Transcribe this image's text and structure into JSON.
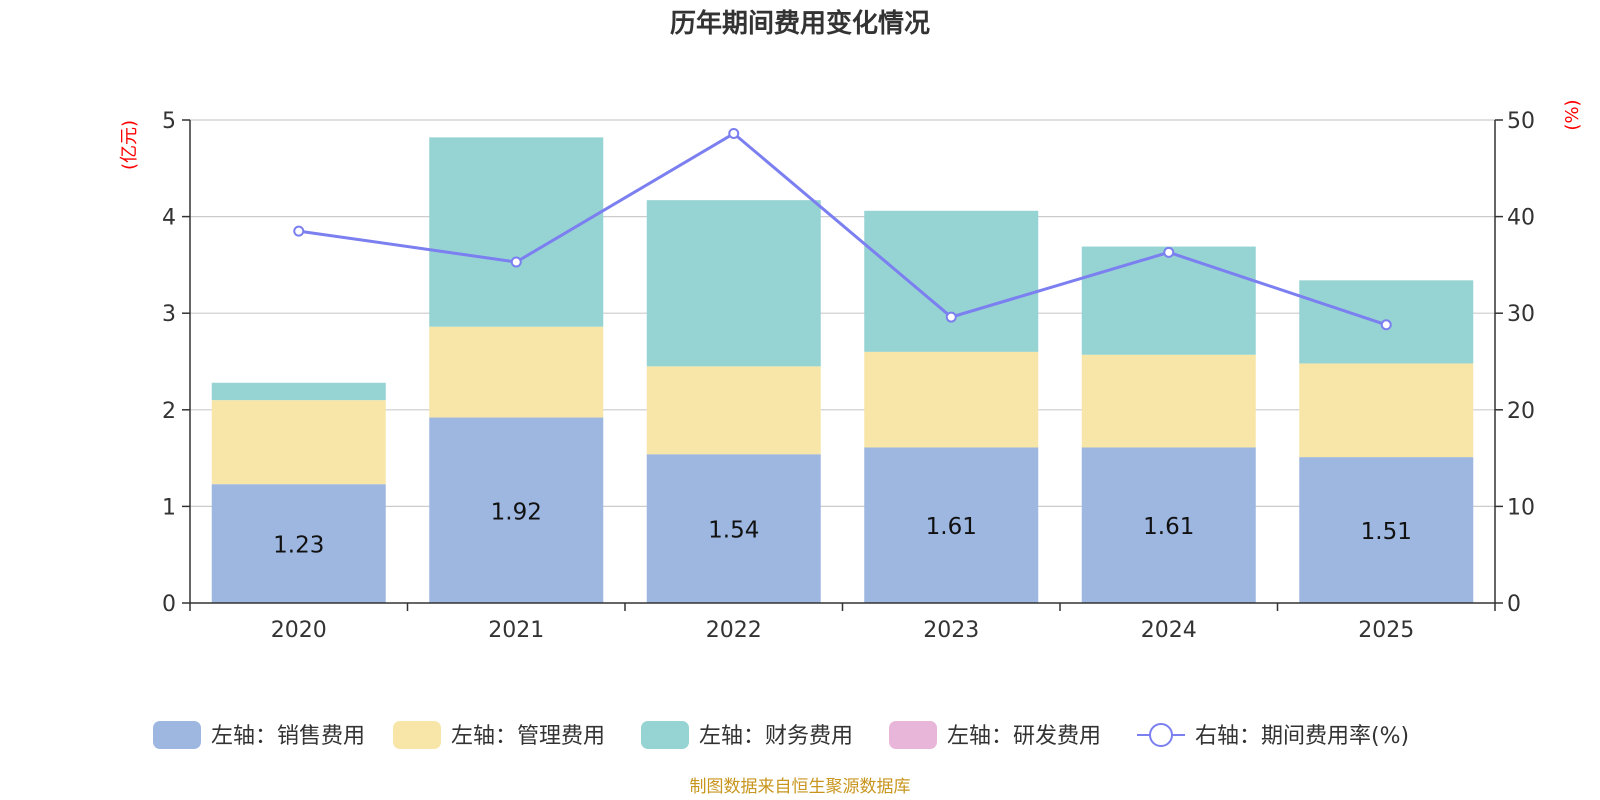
{
  "chart_data": {
    "type": "bar",
    "stacked": true,
    "title": "历年期间费用变化情况",
    "categories": [
      "2020",
      "2021",
      "2022",
      "2023",
      "2024",
      "2025"
    ],
    "series": [
      {
        "name": "左轴：销售费用",
        "axis": "left",
        "type": "bar",
        "color": "#9db7e1",
        "values": [
          1.23,
          1.92,
          1.54,
          1.61,
          1.61,
          1.51
        ],
        "show_labels": true
      },
      {
        "name": "左轴：管理费用",
        "axis": "left",
        "type": "bar",
        "color": "#f7e6a7",
        "values": [
          0.87,
          0.94,
          0.91,
          0.99,
          0.96,
          0.97
        ],
        "show_labels": false
      },
      {
        "name": "左轴：财务费用",
        "axis": "left",
        "type": "bar",
        "color": "#96d3d3",
        "values": [
          0.18,
          1.96,
          1.72,
          1.46,
          1.12,
          0.86
        ],
        "show_labels": false
      },
      {
        "name": "左轴：研发费用",
        "axis": "left",
        "type": "bar",
        "color": "#e8b6d8",
        "values": [
          0,
          0,
          0,
          0,
          0,
          0
        ],
        "show_labels": false
      },
      {
        "name": "右轴：期间费用率(%)",
        "axis": "right",
        "type": "line",
        "color": "#7b7ff0",
        "values": [
          38.5,
          35.3,
          48.6,
          29.6,
          36.3,
          28.8
        ],
        "show_labels": false
      }
    ],
    "y_left": {
      "label": "(亿元)",
      "min": 0,
      "max": 5,
      "ticks": [
        0,
        1,
        2,
        3,
        4,
        5
      ]
    },
    "y_right": {
      "label": "(%)",
      "min": 0,
      "max": 50,
      "ticks": [
        0,
        10,
        20,
        30,
        40,
        50
      ]
    },
    "grid": true,
    "legend_position": "bottom",
    "source": "制图数据来自恒生聚源数据库"
  }
}
